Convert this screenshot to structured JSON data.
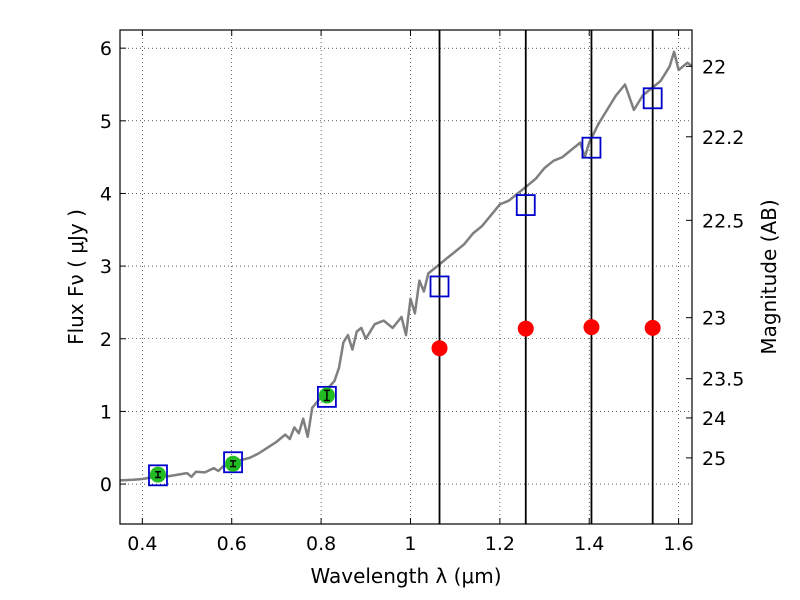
{
  "chart_data": {
    "type": "scatter",
    "xlabel": "Wavelength  λ (μm)",
    "ylabel": "Flux  Fν  ( μJy )",
    "y2label": "Magnitude (AB)",
    "xlim": [
      0.35,
      1.63
    ],
    "ylim": [
      -0.55,
      6.25
    ],
    "grid": true,
    "x_ticks": [
      {
        "value": 0.4,
        "label": "0.4"
      },
      {
        "value": 0.6,
        "label": "0.6"
      },
      {
        "value": 0.8,
        "label": "0.8"
      },
      {
        "value": 1.0,
        "label": "1"
      },
      {
        "value": 1.2,
        "label": "1.2"
      },
      {
        "value": 1.4,
        "label": "1.4"
      },
      {
        "value": 1.6,
        "label": "1.6"
      }
    ],
    "y_ticks": [
      {
        "value": 0,
        "label": "0"
      },
      {
        "value": 1,
        "label": "1"
      },
      {
        "value": 2,
        "label": "2"
      },
      {
        "value": 3,
        "label": "3"
      },
      {
        "value": 4,
        "label": "4"
      },
      {
        "value": 5,
        "label": "5"
      },
      {
        "value": 6,
        "label": "6"
      }
    ],
    "magnitude_ticks": [
      {
        "flux": 5.75,
        "label": "22"
      },
      {
        "flux": 4.78,
        "label": "22.2"
      },
      {
        "flux": 3.63,
        "label": "22.5"
      },
      {
        "flux": 2.29,
        "label": "23"
      },
      {
        "flux": 1.45,
        "label": "23.5"
      },
      {
        "flux": 0.91,
        "label": "24"
      },
      {
        "flux": 0.36,
        "label": "25"
      }
    ],
    "vertical_lines": [
      1.065,
      1.258,
      1.405,
      1.542
    ],
    "spectrum": {
      "color": "#7f7f7f",
      "x": [
        0.35,
        0.38,
        0.4,
        0.42,
        0.44,
        0.46,
        0.48,
        0.5,
        0.51,
        0.52,
        0.54,
        0.56,
        0.57,
        0.58,
        0.6,
        0.62,
        0.64,
        0.66,
        0.68,
        0.7,
        0.72,
        0.73,
        0.74,
        0.75,
        0.76,
        0.77,
        0.78,
        0.79,
        0.8,
        0.81,
        0.82,
        0.83,
        0.84,
        0.85,
        0.86,
        0.87,
        0.88,
        0.89,
        0.9,
        0.92,
        0.94,
        0.96,
        0.98,
        0.99,
        1.0,
        1.01,
        1.02,
        1.03,
        1.04,
        1.06,
        1.08,
        1.1,
        1.12,
        1.14,
        1.16,
        1.18,
        1.2,
        1.22,
        1.24,
        1.26,
        1.28,
        1.3,
        1.32,
        1.34,
        1.36,
        1.38,
        1.39,
        1.4,
        1.42,
        1.44,
        1.46,
        1.48,
        1.5,
        1.52,
        1.54,
        1.56,
        1.58,
        1.59,
        1.6,
        1.62,
        1.63
      ],
      "y": [
        0.05,
        0.06,
        0.07,
        0.09,
        0.1,
        0.11,
        0.13,
        0.15,
        0.1,
        0.17,
        0.16,
        0.22,
        0.18,
        0.24,
        0.27,
        0.33,
        0.36,
        0.42,
        0.5,
        0.58,
        0.68,
        0.62,
        0.78,
        0.7,
        0.9,
        0.65,
        1.05,
        1.12,
        1.2,
        1.28,
        1.35,
        1.42,
        1.6,
        1.95,
        2.05,
        1.85,
        2.1,
        2.15,
        2.0,
        2.2,
        2.25,
        2.15,
        2.3,
        2.05,
        2.55,
        2.35,
        2.8,
        2.65,
        2.9,
        3.0,
        3.1,
        3.2,
        3.3,
        3.45,
        3.55,
        3.7,
        3.85,
        3.9,
        4.0,
        4.1,
        4.2,
        4.35,
        4.45,
        4.5,
        4.6,
        4.7,
        4.5,
        4.7,
        4.95,
        5.15,
        5.35,
        5.5,
        5.15,
        5.35,
        5.45,
        5.55,
        5.75,
        5.95,
        5.7,
        5.8,
        5.75
      ]
    },
    "series": [
      {
        "marker": "square",
        "color": "#0000cc",
        "x": [
          0.435,
          0.603,
          0.813,
          1.065,
          1.258,
          1.405,
          1.542
        ],
        "y": [
          0.12,
          0.3,
          1.2,
          2.72,
          3.84,
          4.63,
          5.31
        ]
      },
      {
        "marker": "circle",
        "color": "#22bb22",
        "x": [
          0.435,
          0.603,
          0.813
        ],
        "y": [
          0.13,
          0.28,
          1.22
        ],
        "err": [
          0.04,
          0.04,
          0.07
        ]
      },
      {
        "marker": "circle",
        "color": "#ff0000",
        "x": [
          1.065,
          1.258,
          1.405,
          1.542
        ],
        "y": [
          1.87,
          2.14,
          2.16,
          2.15
        ]
      }
    ]
  }
}
